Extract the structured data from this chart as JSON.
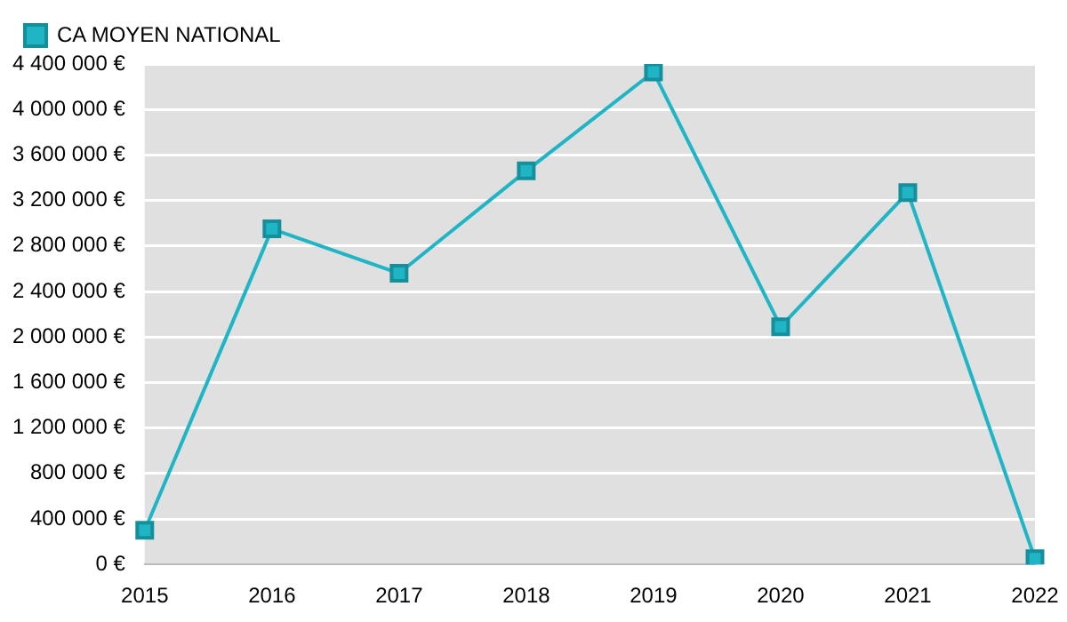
{
  "chart_data": {
    "type": "line",
    "categories": [
      "2015",
      "2016",
      "2017",
      "2018",
      "2019",
      "2020",
      "2021",
      "2022"
    ],
    "series": [
      {
        "name": "CA MOYEN NATIONAL",
        "color": "#1fb5c4",
        "values": [
          300000,
          2950000,
          2560000,
          3460000,
          4330000,
          2090000,
          3270000,
          50000
        ]
      }
    ],
    "ylim": [
      0,
      4400000
    ],
    "yticks": [
      {
        "value": 0,
        "label": "0 €"
      },
      {
        "value": 400000,
        "label": "400 000 €"
      },
      {
        "value": 800000,
        "label": "800 000 €"
      },
      {
        "value": 1200000,
        "label": "1 200 000 €"
      },
      {
        "value": 1600000,
        "label": "1 600 000 €"
      },
      {
        "value": 2000000,
        "label": "2 000 000 €"
      },
      {
        "value": 2400000,
        "label": "2 400 000 €"
      },
      {
        "value": 2800000,
        "label": "2 800 000 €"
      },
      {
        "value": 3200000,
        "label": "3 200 000 €"
      },
      {
        "value": 3600000,
        "label": "3 600 000 €"
      },
      {
        "value": 4000000,
        "label": "4 000 000 €"
      },
      {
        "value": 4400000,
        "label": "4 400 000 €"
      }
    ],
    "grid": "y",
    "legend": "top left",
    "marker": "square",
    "line_style": "solid"
  }
}
